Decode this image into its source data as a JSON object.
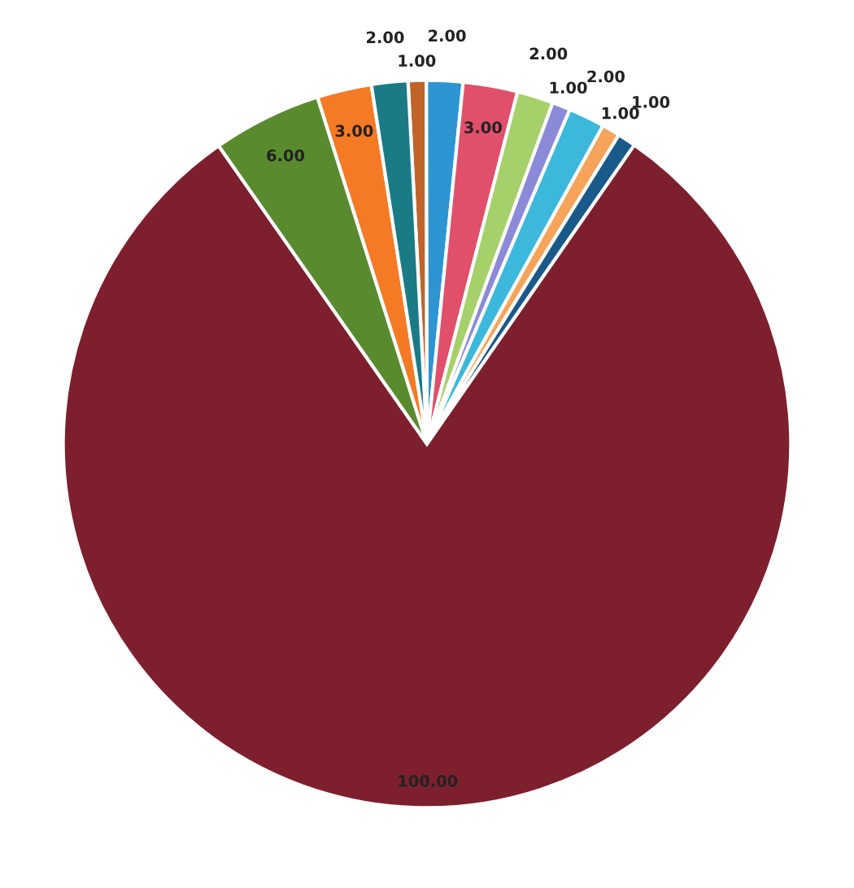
{
  "chart_data": {
    "type": "pie",
    "categories": [
      null,
      null,
      null,
      null,
      null,
      null,
      null,
      null,
      null,
      null,
      null,
      null
    ],
    "values": [
      1,
      2,
      3,
      2,
      1,
      2,
      1,
      1,
      100,
      6,
      3,
      2
    ],
    "colors": [
      "#c0642a",
      "#2e95d3",
      "#e0506a",
      "#a6d06a",
      "#8a8ad8",
      "#3cb8dc",
      "#f5a45a",
      "#1a5a8a",
      "#7e1f2e",
      "#5a8a2e",
      "#f47a26",
      "#1a7a86"
    ],
    "value_labels": [
      "1.00",
      "2.00",
      "3.00",
      "2.00",
      "1.00",
      "2.00",
      "1.00",
      "1.00",
      "100.00",
      "6.00",
      "3.00",
      "2.00"
    ],
    "legend": false
  }
}
